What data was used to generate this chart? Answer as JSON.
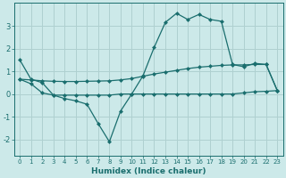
{
  "xlabel": "Humidex (Indice chaleur)",
  "background_color": "#cce9e9",
  "grid_color": "#afd0d0",
  "line_color": "#1a6e6e",
  "xlim": [
    -0.5,
    23.5
  ],
  "ylim": [
    -2.7,
    4.0
  ],
  "yticks": [
    -2,
    -1,
    0,
    1,
    2,
    3
  ],
  "xticks": [
    0,
    1,
    2,
    3,
    4,
    5,
    6,
    7,
    8,
    9,
    10,
    11,
    12,
    13,
    14,
    15,
    16,
    17,
    18,
    19,
    20,
    21,
    22,
    23
  ],
  "curve1_x": [
    0,
    1,
    2,
    3,
    4,
    5,
    6,
    7,
    8,
    9,
    10,
    11,
    12,
    13,
    14,
    15,
    16,
    17,
    18,
    19,
    20,
    21,
    22,
    23
  ],
  "curve1_y": [
    1.5,
    0.65,
    0.5,
    -0.05,
    -0.2,
    -0.3,
    -0.45,
    -1.3,
    -2.1,
    -0.75,
    0.0,
    0.8,
    2.05,
    3.15,
    3.55,
    3.28,
    3.5,
    3.28,
    3.2,
    1.3,
    1.2,
    1.35,
    1.3,
    0.15
  ],
  "curve2_x": [
    0,
    1,
    2,
    3,
    4,
    5,
    6,
    7,
    8,
    9,
    10,
    11,
    12,
    13,
    14,
    15,
    16,
    17,
    18,
    19,
    20,
    21,
    22,
    23
  ],
  "curve2_y": [
    0.65,
    0.62,
    0.58,
    0.56,
    0.55,
    0.55,
    0.56,
    0.57,
    0.58,
    0.62,
    0.68,
    0.78,
    0.88,
    0.96,
    1.04,
    1.12,
    1.18,
    1.22,
    1.26,
    1.28,
    1.28,
    1.3,
    1.3,
    0.15
  ],
  "curve3_x": [
    0,
    1,
    2,
    3,
    4,
    5,
    6,
    7,
    8,
    9,
    10,
    11,
    12,
    13,
    14,
    15,
    16,
    17,
    18,
    19,
    20,
    21,
    22,
    23
  ],
  "curve3_y": [
    0.65,
    0.45,
    0.05,
    -0.05,
    -0.05,
    -0.05,
    -0.05,
    -0.05,
    -0.05,
    0.0,
    0.0,
    0.0,
    0.0,
    0.0,
    0.0,
    0.0,
    0.0,
    0.0,
    0.0,
    0.0,
    0.05,
    0.1,
    0.12,
    0.15
  ],
  "markersize": 2.5
}
